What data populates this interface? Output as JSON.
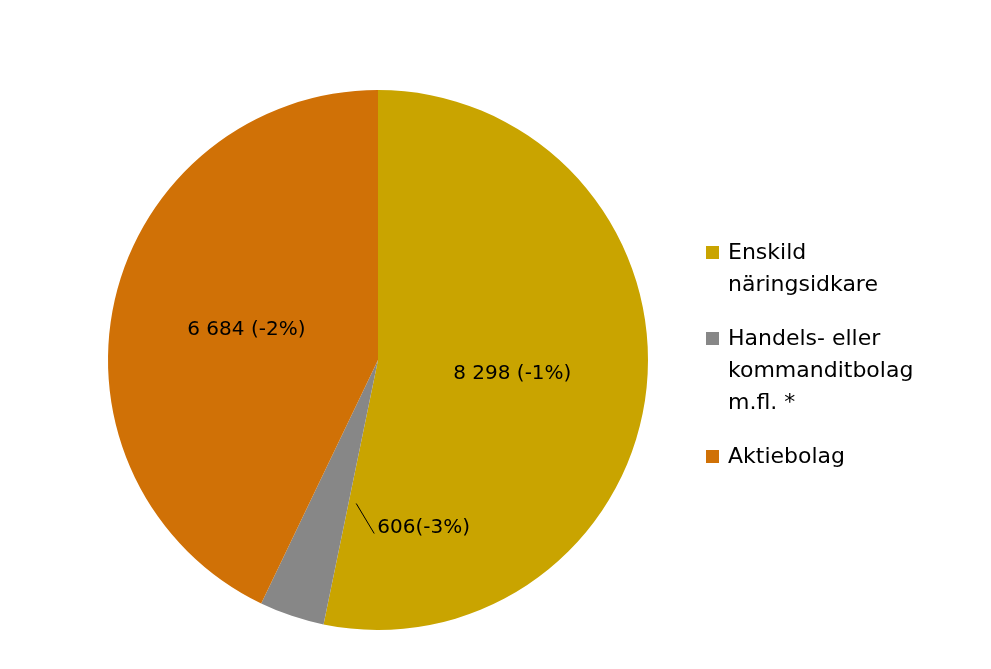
{
  "chart_data": {
    "type": "pie",
    "categories": [
      "Enskild näringsidkare",
      "Handels- eller kommanditbolag m.fl. *",
      "Aktiebolag"
    ],
    "values": [
      8298,
      606,
      6684
    ],
    "value_labels": [
      "8 298 (-1%)",
      "606(-3%)",
      "6 684 (-2%)"
    ],
    "colors": [
      "#c9a400",
      "#878787",
      "#d07106"
    ],
    "data_labels": true,
    "legend": "right"
  }
}
